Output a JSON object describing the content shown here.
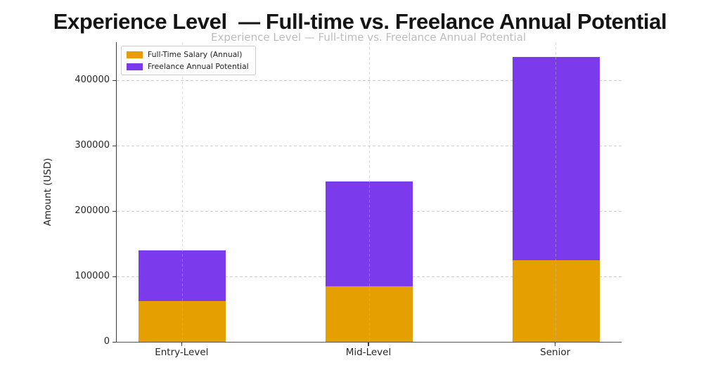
{
  "page": {
    "background": "#ffffff"
  },
  "title": {
    "text": "Experience Level  — Full-time vs. Freelance Annual Potential",
    "ghost_text": "Experience Level — Full-time vs. Freelance Annual Potential"
  },
  "chart_data": {
    "type": "bar",
    "stacked": true,
    "title": "Experience Level  — Full-time vs. Freelance Annual Potential",
    "categories": [
      "Entry-Level",
      "Mid-Level",
      "Senior"
    ],
    "series": [
      {
        "name": "Full-Time Salary (Annual)",
        "color": "#E69F00",
        "values": [
          62000,
          85000,
          125000
        ]
      },
      {
        "name": "Freelance Annual Potential",
        "color": "#7C3AED",
        "values": [
          78000,
          160000,
          310000
        ]
      }
    ],
    "stack_totals": [
      140000,
      245000,
      435000
    ],
    "xlabel": "",
    "ylabel": "Amount (USD)",
    "yticks": [
      0,
      100000,
      200000,
      300000,
      400000
    ],
    "ytick_labels": [
      "0",
      "100000",
      "200000",
      "300000",
      "400000"
    ],
    "ylim": [
      0,
      458000
    ],
    "grid": "dashed-horizontal-and-vertical",
    "legend_position": "upper-left",
    "colors": {
      "grid": "#cfcfcf",
      "axis": "#3d3d3d",
      "tick_text": "#262626",
      "ghost_title": "#bdbdbd",
      "title_text": "#141414",
      "background": "#ffffff"
    }
  }
}
